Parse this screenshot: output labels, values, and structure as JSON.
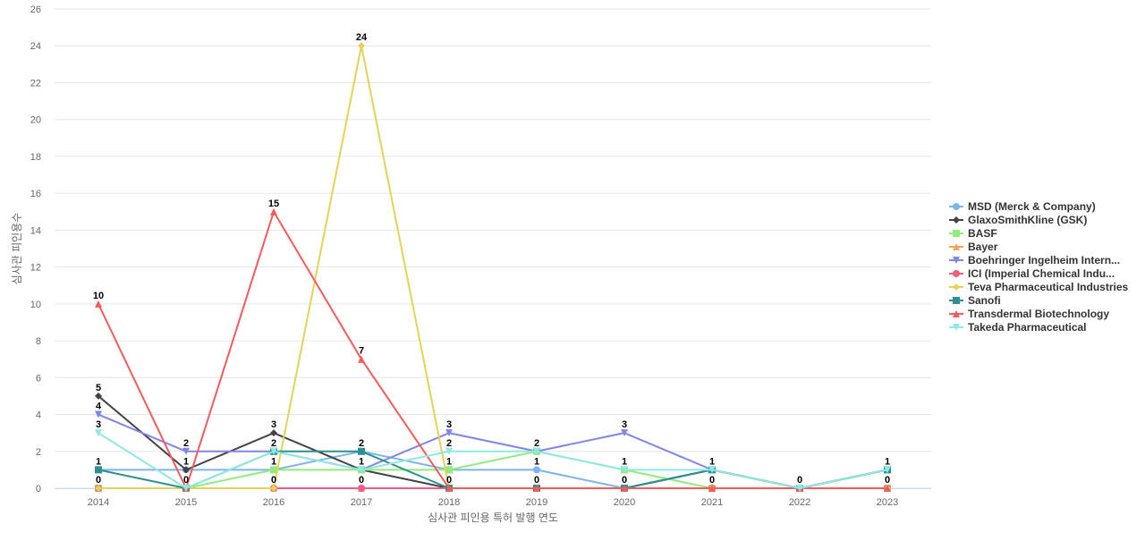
{
  "chart_data": {
    "type": "line",
    "title": "",
    "xlabel": "심사관 피인용 특허 발행 연도",
    "ylabel": "심사관 피인용수",
    "categories": [
      "2014",
      "2015",
      "2016",
      "2017",
      "2018",
      "2019",
      "2020",
      "2021",
      "2022",
      "2023"
    ],
    "y_ticks": [
      0,
      2,
      4,
      6,
      8,
      10,
      12,
      14,
      16,
      18,
      20,
      22,
      24,
      26
    ],
    "ylim": [
      0,
      26
    ],
    "grid": true,
    "legend_position": "right",
    "series": [
      {
        "name": "MSD (Merck & Company)",
        "color": "#7cb5ec",
        "marker": "circle",
        "values": [
          1,
          1,
          1,
          2,
          1,
          1,
          0,
          1,
          0,
          1
        ]
      },
      {
        "name": "GlaxoSmithKline (GSK)",
        "color": "#434348",
        "marker": "diamond",
        "values": [
          5,
          1,
          3,
          1,
          0,
          0,
          0,
          1,
          0,
          1
        ]
      },
      {
        "name": "BASF",
        "color": "#90ed7d",
        "marker": "square",
        "values": [
          0,
          0,
          1,
          1,
          1,
          2,
          1,
          0,
          0,
          0
        ]
      },
      {
        "name": "Bayer",
        "color": "#f7a35c",
        "marker": "triangle",
        "values": [
          0,
          0,
          0,
          0,
          0,
          0,
          0,
          0,
          0,
          0
        ]
      },
      {
        "name": "Boehringer Ingelheim Intern...",
        "color": "#8085e9",
        "marker": "triangle-down",
        "values": [
          4,
          2,
          2,
          1,
          3,
          2,
          3,
          1,
          0,
          1
        ]
      },
      {
        "name": "ICI (Imperial Chemical Indu...",
        "color": "#f15c80",
        "marker": "circle",
        "values": [
          0,
          0,
          0,
          0,
          0,
          0,
          0,
          0,
          0,
          0
        ]
      },
      {
        "name": "Teva Pharmaceutical Industries",
        "color": "#e4d354",
        "marker": "diamond",
        "values": [
          0,
          0,
          0,
          24,
          0,
          0,
          0,
          0,
          0,
          0
        ]
      },
      {
        "name": "Sanofi",
        "color": "#2b908f",
        "marker": "square",
        "values": [
          1,
          0,
          2,
          2,
          0,
          0,
          0,
          1,
          0,
          1
        ]
      },
      {
        "name": "Transdermal Biotechnology",
        "color": "#f45b5b",
        "marker": "triangle",
        "values": [
          10,
          0,
          15,
          7,
          0,
          0,
          0,
          0,
          0,
          0
        ]
      },
      {
        "name": "Takeda Pharmaceutical",
        "color": "#91e8e1",
        "marker": "triangle-down",
        "values": [
          3,
          0,
          2,
          1,
          2,
          2,
          1,
          1,
          0,
          1
        ]
      }
    ],
    "data_labels": [
      {
        "category": "2014",
        "y": 10,
        "text": "10"
      },
      {
        "category": "2014",
        "y": 5,
        "text": "5"
      },
      {
        "category": "2014",
        "y": 4,
        "text": "4"
      },
      {
        "category": "2014",
        "y": 3,
        "text": "3"
      },
      {
        "category": "2014",
        "y": 1,
        "text": "1"
      },
      {
        "category": "2014",
        "y": 0,
        "text": "0"
      },
      {
        "category": "2015",
        "y": 2,
        "text": "2"
      },
      {
        "category": "2015",
        "y": 1,
        "text": "1"
      },
      {
        "category": "2015",
        "y": 0,
        "text": "0"
      },
      {
        "category": "2016",
        "y": 15,
        "text": "15"
      },
      {
        "category": "2016",
        "y": 3,
        "text": "3"
      },
      {
        "category": "2016",
        "y": 2,
        "text": "2"
      },
      {
        "category": "2016",
        "y": 1,
        "text": "1"
      },
      {
        "category": "2016",
        "y": 0,
        "text": "0"
      },
      {
        "category": "2017",
        "y": 24,
        "text": "24"
      },
      {
        "category": "2017",
        "y": 7,
        "text": "7"
      },
      {
        "category": "2017",
        "y": 2,
        "text": "2"
      },
      {
        "category": "2017",
        "y": 1,
        "text": "1"
      },
      {
        "category": "2017",
        "y": 0,
        "text": "0"
      },
      {
        "category": "2018",
        "y": 3,
        "text": "3"
      },
      {
        "category": "2018",
        "y": 2,
        "text": "2"
      },
      {
        "category": "2018",
        "y": 1,
        "text": "1"
      },
      {
        "category": "2018",
        "y": 0,
        "text": "0"
      },
      {
        "category": "2019",
        "y": 2,
        "text": "2"
      },
      {
        "category": "2019",
        "y": 1,
        "text": "1"
      },
      {
        "category": "2019",
        "y": 0,
        "text": "0"
      },
      {
        "category": "2020",
        "y": 3,
        "text": "3"
      },
      {
        "category": "2020",
        "y": 1,
        "text": "1"
      },
      {
        "category": "2020",
        "y": 0,
        "text": "0"
      },
      {
        "category": "2021",
        "y": 1,
        "text": "1"
      },
      {
        "category": "2021",
        "y": 0,
        "text": "0"
      },
      {
        "category": "2022",
        "y": 0,
        "text": "0"
      },
      {
        "category": "2023",
        "y": 1,
        "text": "1"
      },
      {
        "category": "2023",
        "y": 0,
        "text": "0"
      }
    ]
  }
}
